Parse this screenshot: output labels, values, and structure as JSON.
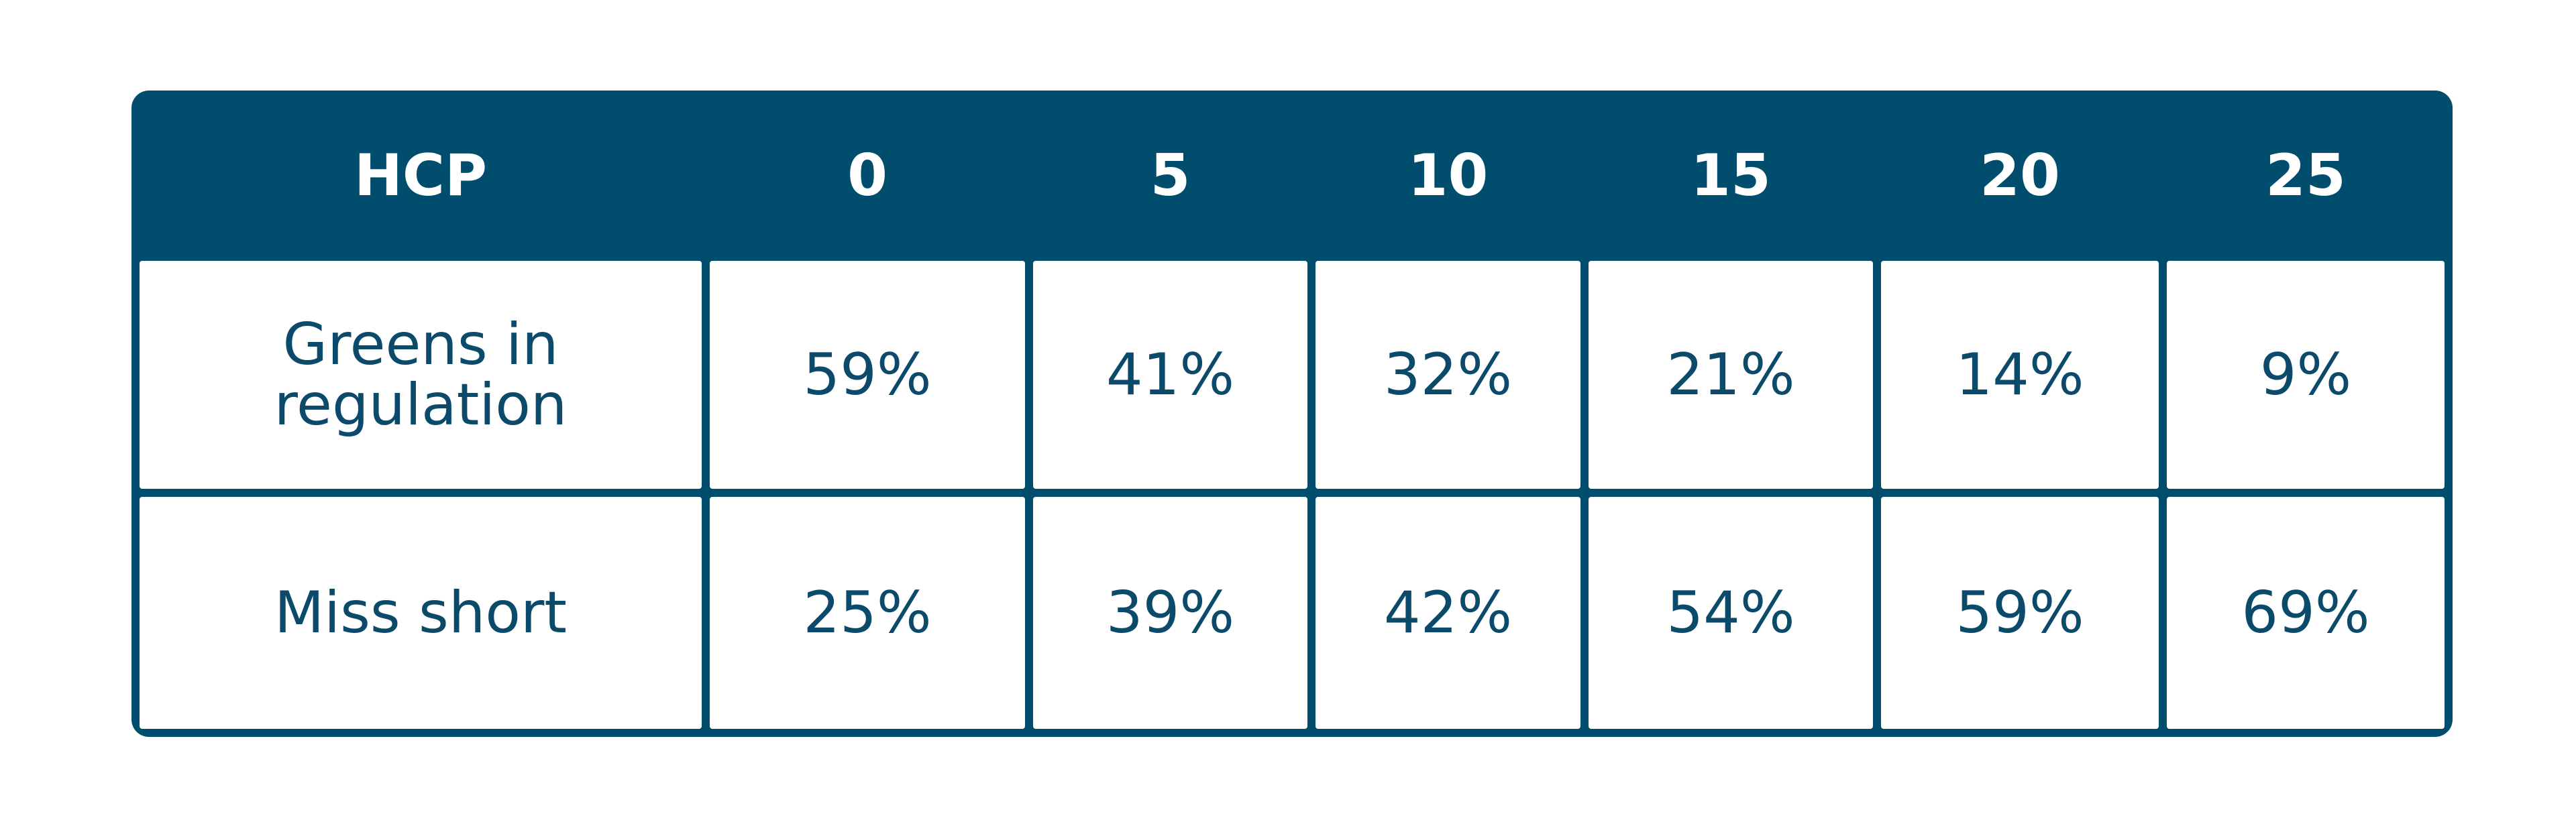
{
  "table": {
    "header": [
      "HCP",
      "0",
      "5",
      "10",
      "15",
      "20",
      "25"
    ],
    "rows": [
      [
        "Greens in regulation",
        "59%",
        "41%",
        "32%",
        "21%",
        "14%",
        "9%"
      ],
      [
        "Miss short",
        "25%",
        "39%",
        "42%",
        "54%",
        "59%",
        "69%"
      ]
    ]
  }
}
